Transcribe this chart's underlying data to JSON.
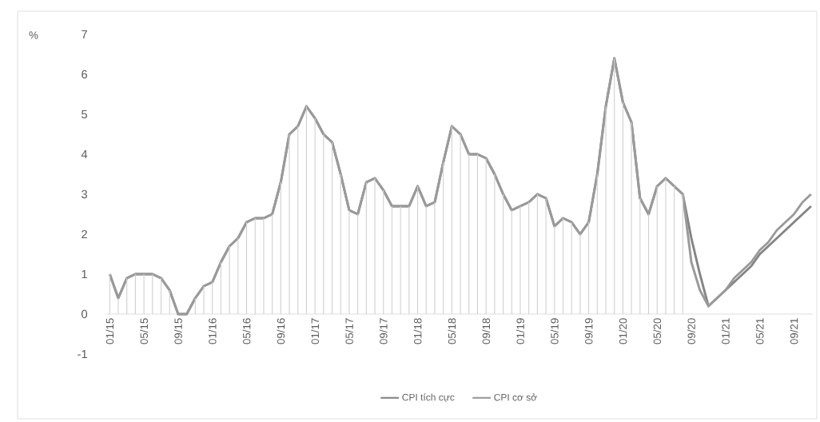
{
  "chart_data": {
    "type": "line",
    "ylabel": "%",
    "categories": [
      "01/15",
      null,
      null,
      null,
      "05/15",
      null,
      null,
      null,
      "09/15",
      null,
      null,
      null,
      "01/16",
      null,
      null,
      null,
      "05/16",
      null,
      null,
      null,
      "09/16",
      null,
      null,
      null,
      "01/17",
      null,
      null,
      null,
      "05/17",
      null,
      null,
      null,
      "09/17",
      null,
      null,
      null,
      "01/18",
      null,
      null,
      null,
      "05/18",
      null,
      null,
      null,
      "09/18",
      null,
      null,
      null,
      "01/19",
      null,
      null,
      null,
      "05/19",
      null,
      null,
      null,
      "09/19",
      null,
      null,
      null,
      "01/20",
      null,
      null,
      null,
      "05/20",
      null,
      null,
      null,
      "09/20",
      null,
      null,
      null,
      "01/21",
      null,
      null,
      null,
      "05/21",
      null,
      null,
      null,
      "09/21",
      null,
      null
    ],
    "series": [
      {
        "type": "bar",
        "color": "#cfcfcf",
        "values": [
          1.0,
          0.4,
          0.9,
          1.0,
          1.0,
          1.0,
          0.9,
          0.6,
          0.0,
          0.0,
          0.4,
          0.7,
          0.8,
          1.3,
          1.7,
          1.9,
          2.3,
          2.4,
          2.4,
          2.5,
          3.3,
          4.5,
          4.7,
          5.2,
          4.9,
          4.5,
          4.3,
          3.5,
          2.6,
          2.5,
          3.3,
          3.4,
          3.1,
          2.7,
          2.7,
          2.7,
          3.2,
          2.7,
          2.8,
          3.8,
          4.7,
          4.5,
          4.0,
          4.0,
          3.9,
          3.5,
          3.0,
          2.6,
          2.7,
          2.8,
          3.0,
          2.9,
          2.2,
          2.4,
          2.3,
          2.0,
          2.3,
          3.5,
          5.2,
          6.4,
          5.3,
          4.8,
          2.9,
          2.5,
          3.2,
          3.4,
          3.2,
          3.0,
          null,
          null,
          null,
          null,
          null,
          null,
          null,
          null,
          null,
          null,
          null,
          null,
          null,
          null,
          null
        ]
      },
      {
        "name": "CPI tích cực",
        "color": "#858585",
        "values": [
          1.0,
          0.4,
          0.9,
          1.0,
          1.0,
          1.0,
          0.9,
          0.6,
          0.0,
          0.0,
          0.4,
          0.7,
          0.8,
          1.3,
          1.7,
          1.9,
          2.3,
          2.4,
          2.4,
          2.5,
          3.3,
          4.5,
          4.7,
          5.2,
          4.9,
          4.5,
          4.3,
          3.5,
          2.6,
          2.5,
          3.3,
          3.4,
          3.1,
          2.7,
          2.7,
          2.7,
          3.2,
          2.7,
          2.8,
          3.8,
          4.7,
          4.5,
          4.0,
          4.0,
          3.9,
          3.5,
          3.0,
          2.6,
          2.7,
          2.8,
          3.0,
          2.9,
          2.2,
          2.4,
          2.3,
          2.0,
          2.3,
          3.5,
          5.2,
          6.4,
          5.3,
          4.8,
          2.9,
          2.5,
          3.2,
          3.4,
          3.2,
          3.0,
          1.9,
          1.0,
          0.2,
          0.4,
          0.6,
          0.8,
          1.0,
          1.2,
          1.5,
          1.7,
          1.9,
          2.1,
          2.3,
          2.5,
          2.7
        ]
      },
      {
        "name": "CPI cơ sở",
        "color": "#9a9a9a",
        "values": [
          1.0,
          0.4,
          0.9,
          1.0,
          1.0,
          1.0,
          0.9,
          0.6,
          0.0,
          0.0,
          0.4,
          0.7,
          0.8,
          1.3,
          1.7,
          1.9,
          2.3,
          2.4,
          2.4,
          2.5,
          3.3,
          4.5,
          4.7,
          5.2,
          4.9,
          4.5,
          4.3,
          3.5,
          2.6,
          2.5,
          3.3,
          3.4,
          3.1,
          2.7,
          2.7,
          2.7,
          3.2,
          2.7,
          2.8,
          3.8,
          4.7,
          4.5,
          4.0,
          4.0,
          3.9,
          3.5,
          3.0,
          2.6,
          2.7,
          2.8,
          3.0,
          2.9,
          2.2,
          2.4,
          2.3,
          2.0,
          2.3,
          3.5,
          5.2,
          6.4,
          5.3,
          4.8,
          2.9,
          2.5,
          3.2,
          3.4,
          3.2,
          3.0,
          1.3,
          0.6,
          0.2,
          0.4,
          0.6,
          0.9,
          1.1,
          1.3,
          1.6,
          1.8,
          2.1,
          2.3,
          2.5,
          2.8,
          3.0
        ]
      }
    ],
    "ylim": [
      -1,
      7
    ],
    "yticks": [
      -1,
      0,
      1,
      2,
      3,
      4,
      5,
      6,
      7
    ],
    "legend": "bottom"
  }
}
